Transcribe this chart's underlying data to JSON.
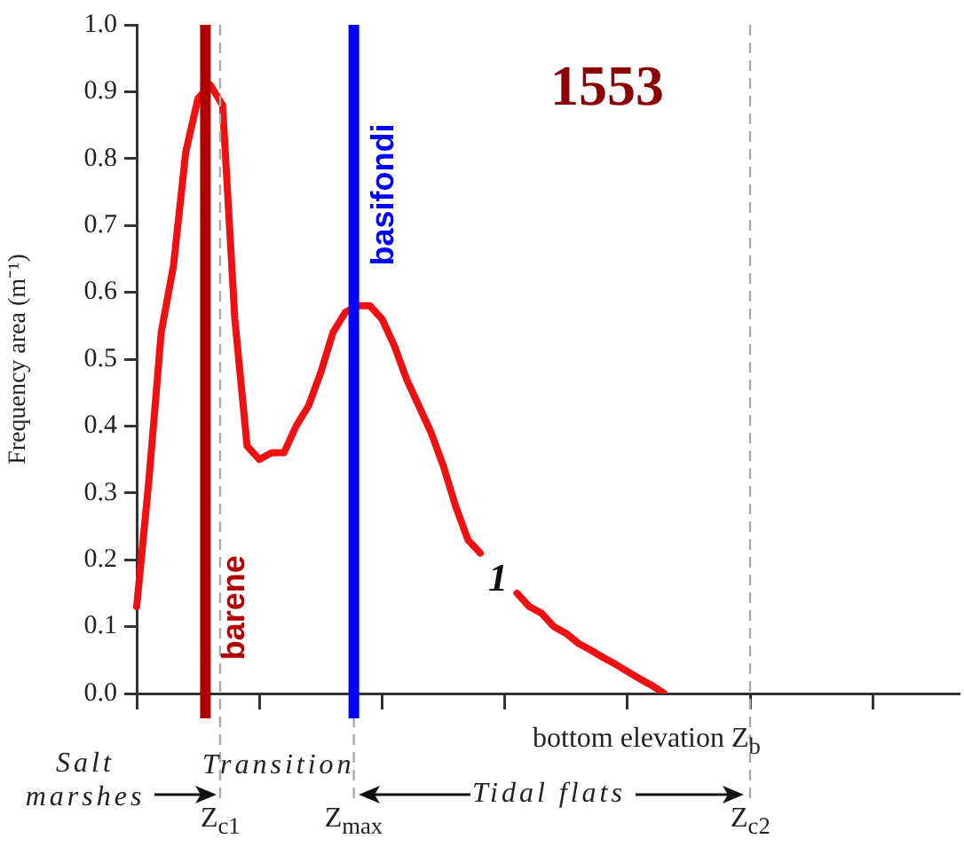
{
  "chart_data": {
    "type": "line",
    "ylabel": "Frequency area (m⁻¹)",
    "xlabel": "bottom elevation Z$_{b}$",
    "categories": [
      null,
      null,
      null,
      null,
      null,
      null,
      null,
      null,
      null,
      null,
      null,
      null,
      null,
      null,
      null,
      null,
      null,
      null,
      null,
      null,
      null,
      null,
      null,
      null,
      null,
      null,
      null,
      null,
      null,
      null,
      null,
      null,
      null,
      null,
      null,
      null,
      null,
      null,
      null,
      null,
      null,
      null,
      null,
      null,
      null,
      null,
      null,
      null,
      null,
      null,
      null,
      null,
      null,
      null,
      null,
      null,
      null,
      null,
      null,
      null,
      null,
      null,
      null,
      null,
      null,
      null,
      null,
      null
    ],
    "series": [
      {
        "color": "#ee1111",
        "values": [
          0.13,
          0.32,
          0.54,
          0.64,
          0.81,
          0.89,
          0.91,
          0.88,
          0.56,
          0.37,
          0.35,
          0.36,
          0.36,
          0.4,
          0.43,
          0.48,
          0.54,
          0.57,
          0.58,
          0.58,
          0.56,
          0.52,
          0.47,
          0.43,
          0.39,
          0.34,
          0.28,
          0.23,
          0.21,
          null,
          null,
          0.15,
          0.13,
          0.12,
          0.1,
          0.09,
          0.075,
          0.065,
          0.054,
          0.044,
          0.033,
          0.022,
          0.012,
          0,
          null,
          null,
          null,
          null,
          null,
          null,
          null,
          null,
          null,
          null,
          null,
          null,
          null,
          null,
          null,
          null,
          null,
          null,
          null,
          null,
          null,
          null,
          null,
          null
        ]
      }
    ],
    "ylim": [
      0,
      1
    ],
    "yticks": [
      {
        "value": 0,
        "label": "0.0"
      },
      0.1,
      0.2,
      0.3,
      0.4,
      0.5,
      0.6,
      0.7,
      0.8,
      0.9,
      {
        "value": 1,
        "label": "1.0"
      }
    ],
    "grid": false,
    "legend": false,
    "marker": "none",
    "line_style": "solid",
    "annotations": [
      "1553",
      "Salt marshes",
      "Transition",
      "Tidal flats",
      "1",
      "Z$_{c1}$",
      "Z$_{max}$",
      "Z$_{c2}$",
      "barene",
      "basifondi"
    ]
  }
}
